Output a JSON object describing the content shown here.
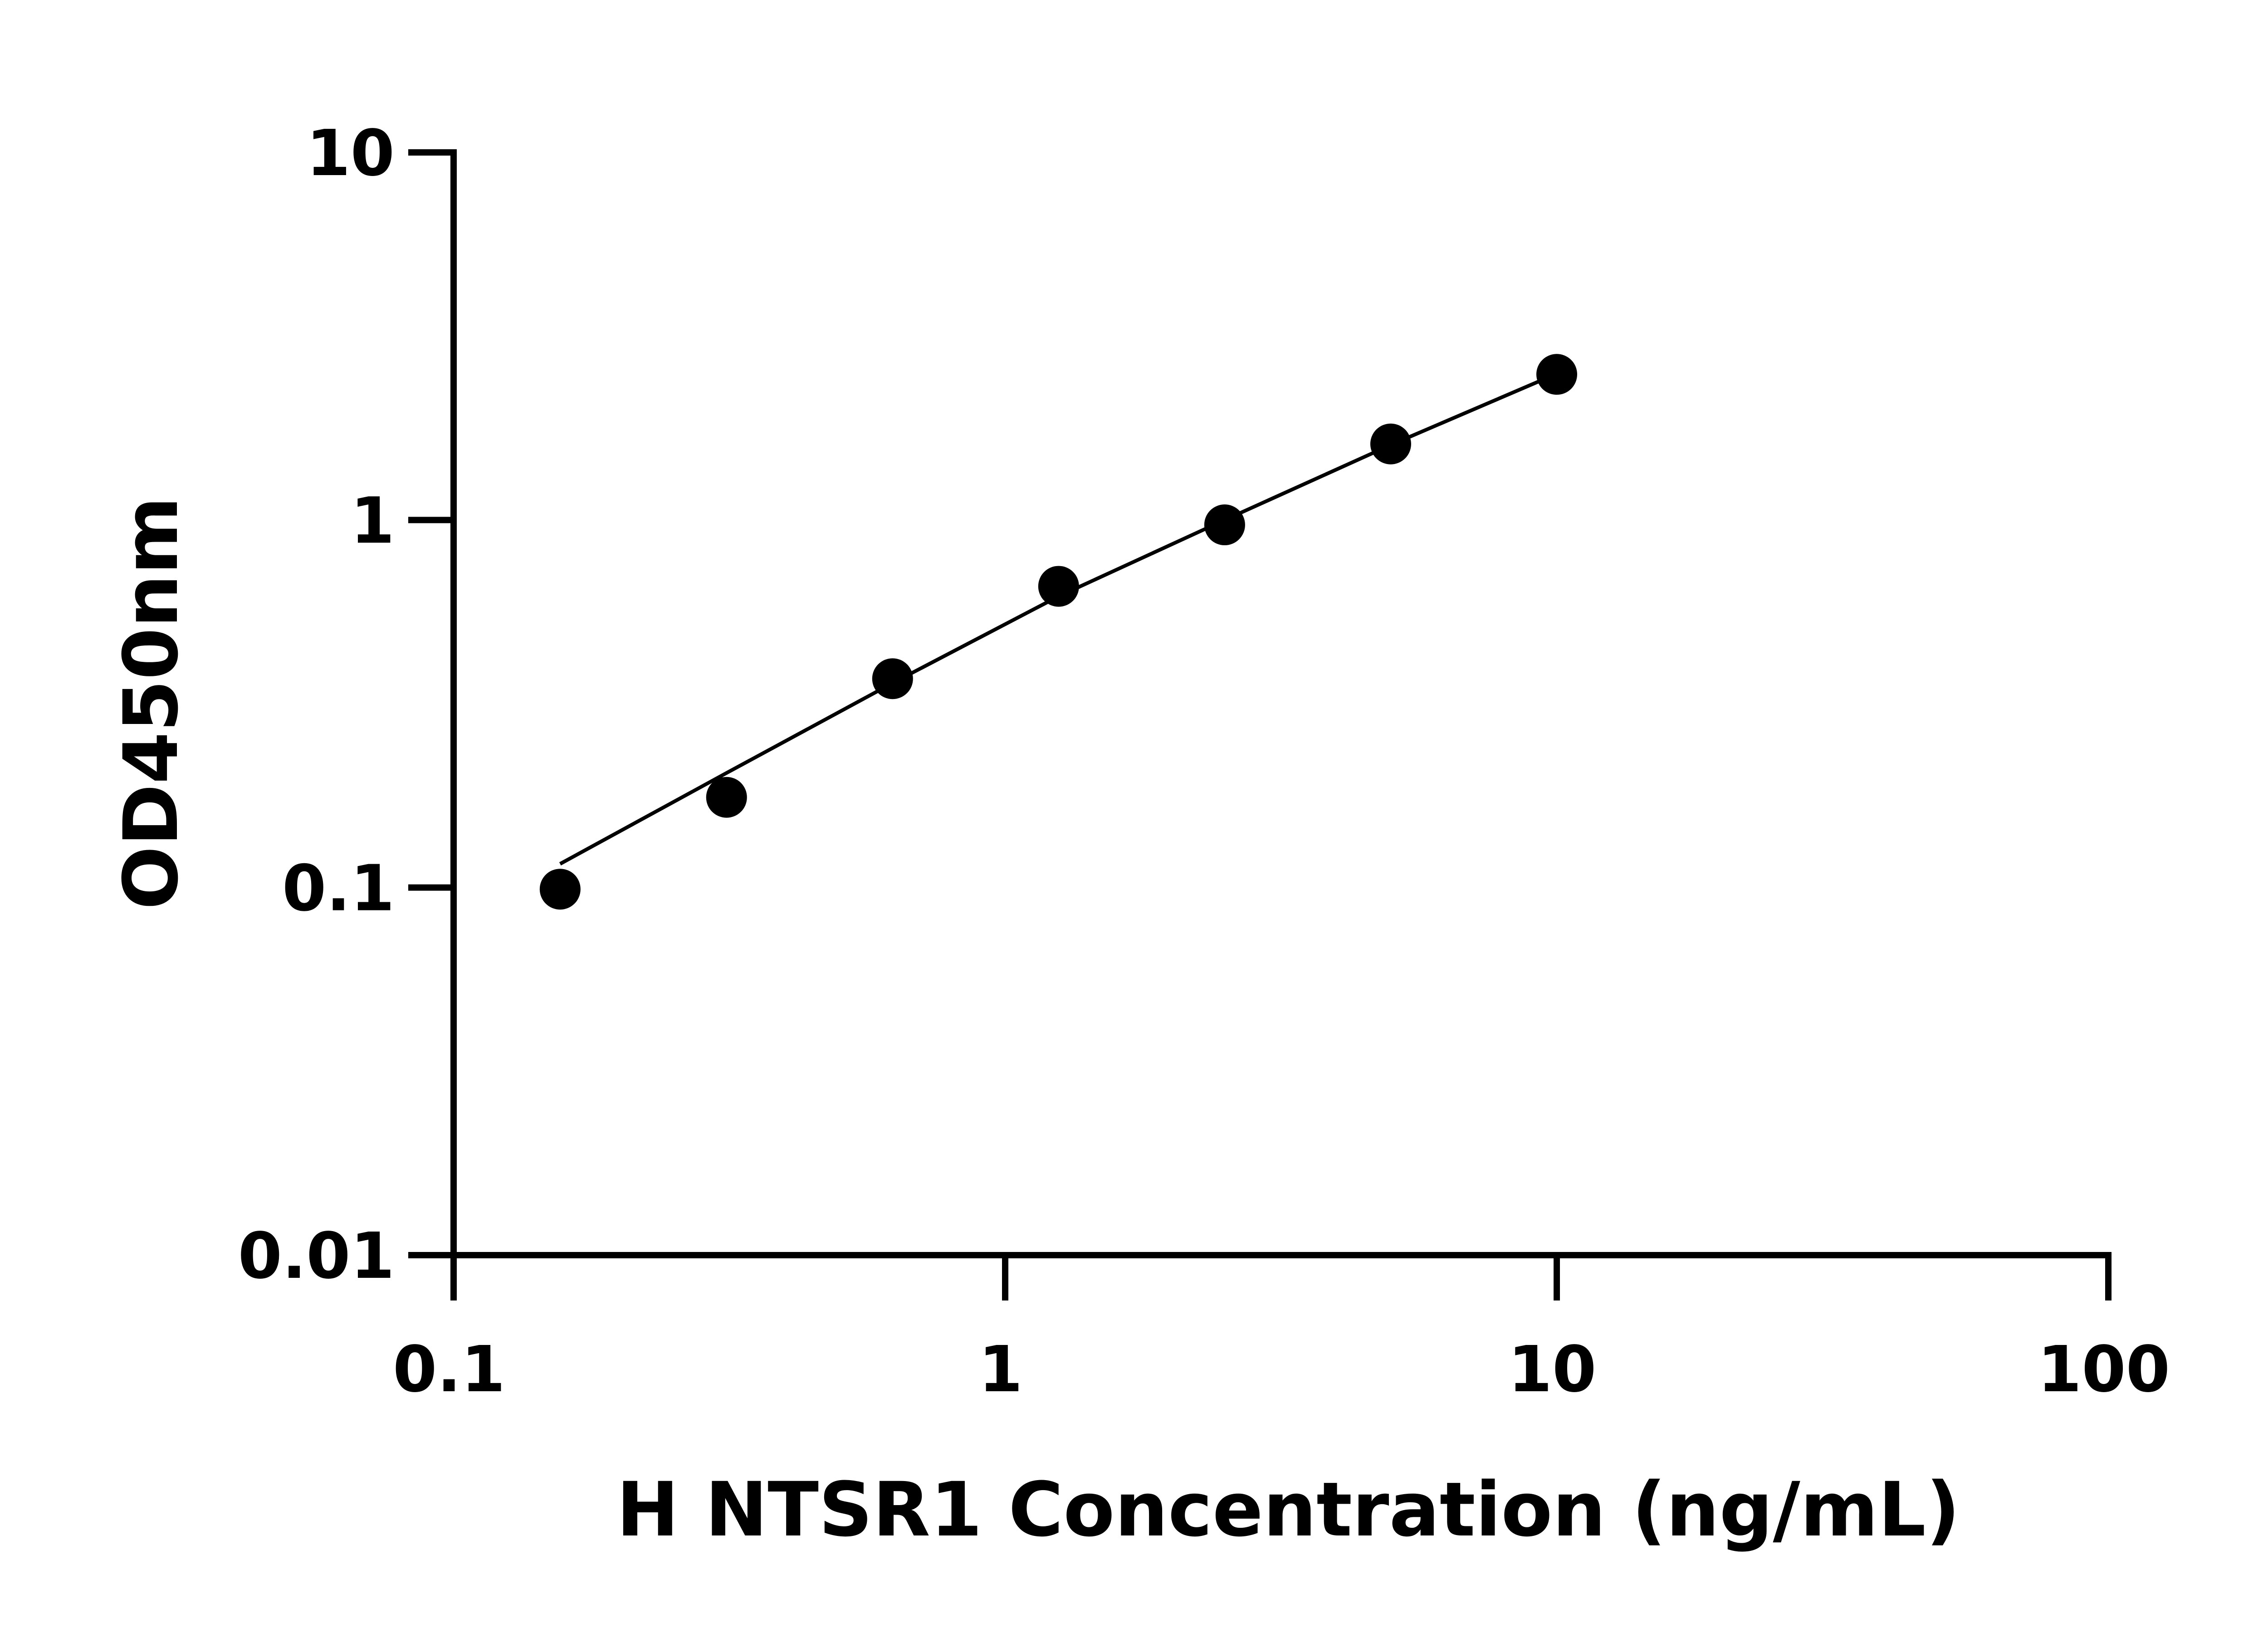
{
  "chart_data": {
    "type": "scatter",
    "title": "",
    "xlabel": "H NTSR1 Concentration (ng/mL)",
    "ylabel": "OD450nm",
    "x_scale": "log",
    "y_scale": "log",
    "xlim": [
      0.1,
      100
    ],
    "ylim": [
      0.01,
      10
    ],
    "x_ticks": [
      0.1,
      1,
      10,
      100
    ],
    "x_tick_labels": [
      "0.1",
      "1",
      "10",
      "100"
    ],
    "y_ticks": [
      0.01,
      0.1,
      1,
      10
    ],
    "y_tick_labels": [
      "0.01",
      "0.1",
      "1",
      "10"
    ],
    "grid": false,
    "legend": "none",
    "points": [
      {
        "x": 0.156,
        "y": 0.099
      },
      {
        "x": 0.3125,
        "y": 0.176
      },
      {
        "x": 0.625,
        "y": 0.37
      },
      {
        "x": 1.25,
        "y": 0.66
      },
      {
        "x": 2.5,
        "y": 0.97
      },
      {
        "x": 5,
        "y": 1.61
      },
      {
        "x": 10,
        "y": 2.49
      }
    ],
    "fit_curve": [
      [
        0.156,
        0.116
      ],
      [
        0.3125,
        0.205
      ],
      [
        0.625,
        0.36
      ],
      [
        1.25,
        0.62
      ],
      [
        2.5,
        1.0
      ],
      [
        5,
        1.6
      ],
      [
        10,
        2.5
      ]
    ],
    "colors": {
      "points": "#000000",
      "line": "#000000",
      "axes": "#000000"
    }
  }
}
